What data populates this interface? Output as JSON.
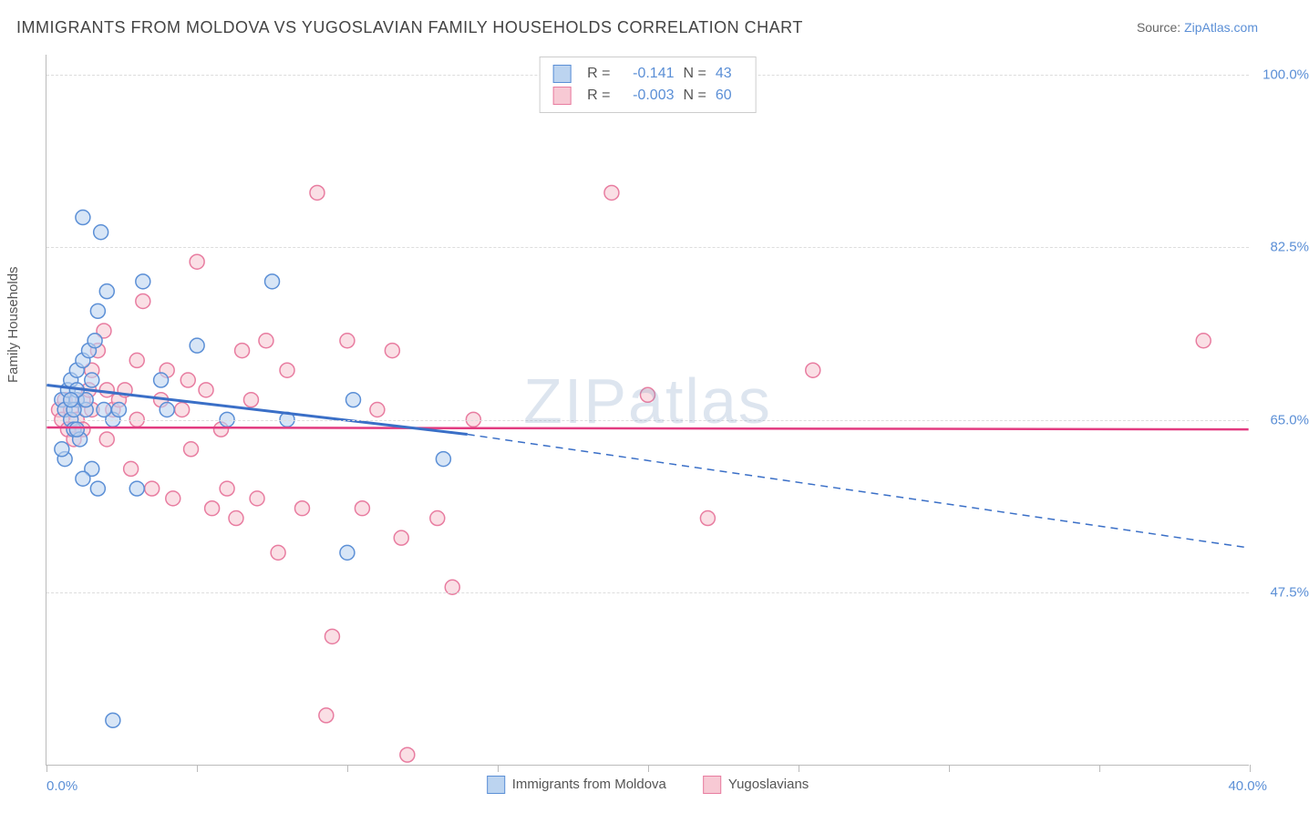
{
  "title": "IMMIGRANTS FROM MOLDOVA VS YUGOSLAVIAN FAMILY HOUSEHOLDS CORRELATION CHART",
  "source": {
    "label": "Source:",
    "name": "ZipAtlas.com"
  },
  "watermark": "ZIPatlas",
  "y_axis": {
    "label": "Family Households",
    "ticks": [
      {
        "value": 100.0,
        "label": "100.0%"
      },
      {
        "value": 82.5,
        "label": "82.5%"
      },
      {
        "value": 65.0,
        "label": "65.0%"
      },
      {
        "value": 47.5,
        "label": "47.5%"
      }
    ],
    "range_min": 30.0,
    "range_max": 102.0
  },
  "x_axis": {
    "range_min": 0.0,
    "range_max": 40.0,
    "ticks": [
      0,
      5,
      10,
      15,
      20,
      25,
      30,
      35,
      40
    ],
    "left_label": "0.0%",
    "right_label": "40.0%",
    "legend": [
      {
        "label": "Immigrants from Moldova",
        "fill": "#bcd4f0",
        "stroke": "#5b8fd6"
      },
      {
        "label": "Yugoslavians",
        "fill": "#f7c9d4",
        "stroke": "#e87ca0"
      }
    ]
  },
  "legend_box": {
    "series": [
      {
        "fill": "#bcd4f0",
        "stroke": "#5b8fd6",
        "r_label": "R =",
        "r": "-0.141",
        "n_label": "N =",
        "n": "43"
      },
      {
        "fill": "#f7c9d4",
        "stroke": "#e87ca0",
        "r_label": "R =",
        "r": "-0.003",
        "n_label": "N =",
        "n": "60"
      }
    ]
  },
  "series": {
    "moldova": {
      "color_fill": "#bcd4f0",
      "color_stroke": "#5b8fd6",
      "marker_radius": 8,
      "fill_opacity": 0.6,
      "points": [
        [
          0.5,
          67
        ],
        [
          0.6,
          66
        ],
        [
          0.7,
          68
        ],
        [
          0.8,
          65
        ],
        [
          0.8,
          69
        ],
        [
          0.9,
          64
        ],
        [
          1.0,
          67
        ],
        [
          1.0,
          70
        ],
        [
          1.1,
          63
        ],
        [
          1.2,
          71
        ],
        [
          1.3,
          66
        ],
        [
          1.4,
          72
        ],
        [
          1.5,
          60
        ],
        [
          1.6,
          73
        ],
        [
          1.7,
          76
        ],
        [
          1.2,
          85.5
        ],
        [
          1.8,
          84
        ],
        [
          2.0,
          78
        ],
        [
          2.2,
          65
        ],
        [
          2.4,
          66
        ],
        [
          3.0,
          58
        ],
        [
          3.2,
          79
        ],
        [
          2.2,
          34.5
        ],
        [
          1.2,
          59
        ],
        [
          0.6,
          61
        ],
        [
          0.5,
          62
        ],
        [
          0.9,
          66
        ],
        [
          1.0,
          64
        ],
        [
          1.3,
          67
        ],
        [
          1.5,
          69
        ],
        [
          1.7,
          58
        ],
        [
          1.9,
          66
        ],
        [
          3.8,
          69
        ],
        [
          5.0,
          72.5
        ],
        [
          7.5,
          79
        ],
        [
          10.2,
          67
        ],
        [
          10.0,
          51.5
        ],
        [
          13.2,
          61
        ],
        [
          8.0,
          65
        ],
        [
          6.0,
          65
        ],
        [
          4.0,
          66
        ],
        [
          1.0,
          68
        ],
        [
          0.8,
          67
        ]
      ],
      "trend": {
        "x1": 0,
        "y1": 68.5,
        "x2_solid": 14,
        "y2_solid": 63.5,
        "x2_dash": 40,
        "y2_dash": 52,
        "color": "#3a6fc7",
        "width": 3
      }
    },
    "yugo": {
      "color_fill": "#f7c9d4",
      "color_stroke": "#e87ca0",
      "marker_radius": 8,
      "fill_opacity": 0.6,
      "points": [
        [
          0.4,
          66
        ],
        [
          0.5,
          65
        ],
        [
          0.6,
          67
        ],
        [
          0.7,
          64
        ],
        [
          0.8,
          66
        ],
        [
          0.9,
          63
        ],
        [
          1.0,
          65
        ],
        [
          1.2,
          67
        ],
        [
          1.4,
          68
        ],
        [
          1.5,
          70
        ],
        [
          1.7,
          72
        ],
        [
          1.9,
          74
        ],
        [
          2.0,
          63
        ],
        [
          2.2,
          66
        ],
        [
          2.4,
          67
        ],
        [
          2.6,
          68
        ],
        [
          2.8,
          60
        ],
        [
          3.0,
          71
        ],
        [
          3.2,
          77
        ],
        [
          3.5,
          58
        ],
        [
          3.8,
          67
        ],
        [
          4.0,
          70
        ],
        [
          4.2,
          57
        ],
        [
          4.5,
          66
        ],
        [
          4.8,
          62
        ],
        [
          5.0,
          81
        ],
        [
          5.3,
          68
        ],
        [
          5.5,
          56
        ],
        [
          5.8,
          64
        ],
        [
          6.0,
          58
        ],
        [
          6.3,
          55
        ],
        [
          6.5,
          72
        ],
        [
          6.8,
          67
        ],
        [
          7.0,
          57
        ],
        [
          7.3,
          73
        ],
        [
          7.7,
          51.5
        ],
        [
          8.0,
          70
        ],
        [
          8.5,
          56
        ],
        [
          9.0,
          88
        ],
        [
          9.3,
          35
        ],
        [
          9.5,
          43
        ],
        [
          10.0,
          73
        ],
        [
          10.5,
          56
        ],
        [
          11.0,
          66
        ],
        [
          11.5,
          72
        ],
        [
          11.8,
          53
        ],
        [
          12.0,
          31
        ],
        [
          13.0,
          55
        ],
        [
          13.5,
          48
        ],
        [
          14.2,
          65
        ],
        [
          18.8,
          88
        ],
        [
          20.0,
          67.5
        ],
        [
          22.0,
          55
        ],
        [
          25.5,
          70
        ],
        [
          4.7,
          69
        ],
        [
          3.0,
          65
        ],
        [
          2.0,
          68
        ],
        [
          1.5,
          66
        ],
        [
          1.2,
          64
        ],
        [
          38.5,
          73
        ]
      ],
      "trend": {
        "x1": 0,
        "y1": 64.2,
        "x2": 40,
        "y2": 64.0,
        "color": "#e23b80",
        "width": 2.5
      }
    }
  }
}
